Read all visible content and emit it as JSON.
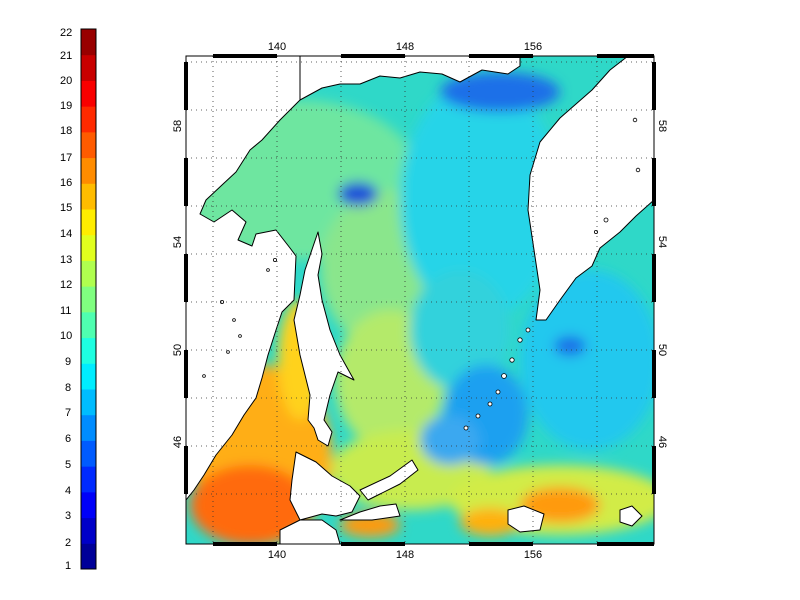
{
  "colorbar": {
    "min": 1,
    "max": 22,
    "tick_labels": [
      "22",
      "21",
      "20",
      "19",
      "18",
      "17",
      "16",
      "15",
      "14",
      "13",
      "12",
      "11",
      "10",
      "9",
      "8",
      "7",
      "6",
      "5",
      "4",
      "3",
      "2",
      "1"
    ]
  },
  "map": {
    "lon_ticks": [
      "140",
      "148",
      "156"
    ],
    "lat_ticks": [
      "58",
      "54",
      "50",
      "46"
    ],
    "lon_range": [
      137,
      166
    ],
    "lat_range": [
      42.5,
      61.3
    ],
    "grid": true,
    "land_color": "#ffffff",
    "coastline_color": "#000000"
  },
  "colors": {
    "very_cold": "#1f4fd8",
    "cold": "#1ea0f0",
    "cool": "#27d4e8",
    "mid": "#7ee28c",
    "mild": "#c8ec50",
    "warm": "#ffd21e",
    "hot": "#ff9a10",
    "very_hot": "#ff5a10"
  }
}
